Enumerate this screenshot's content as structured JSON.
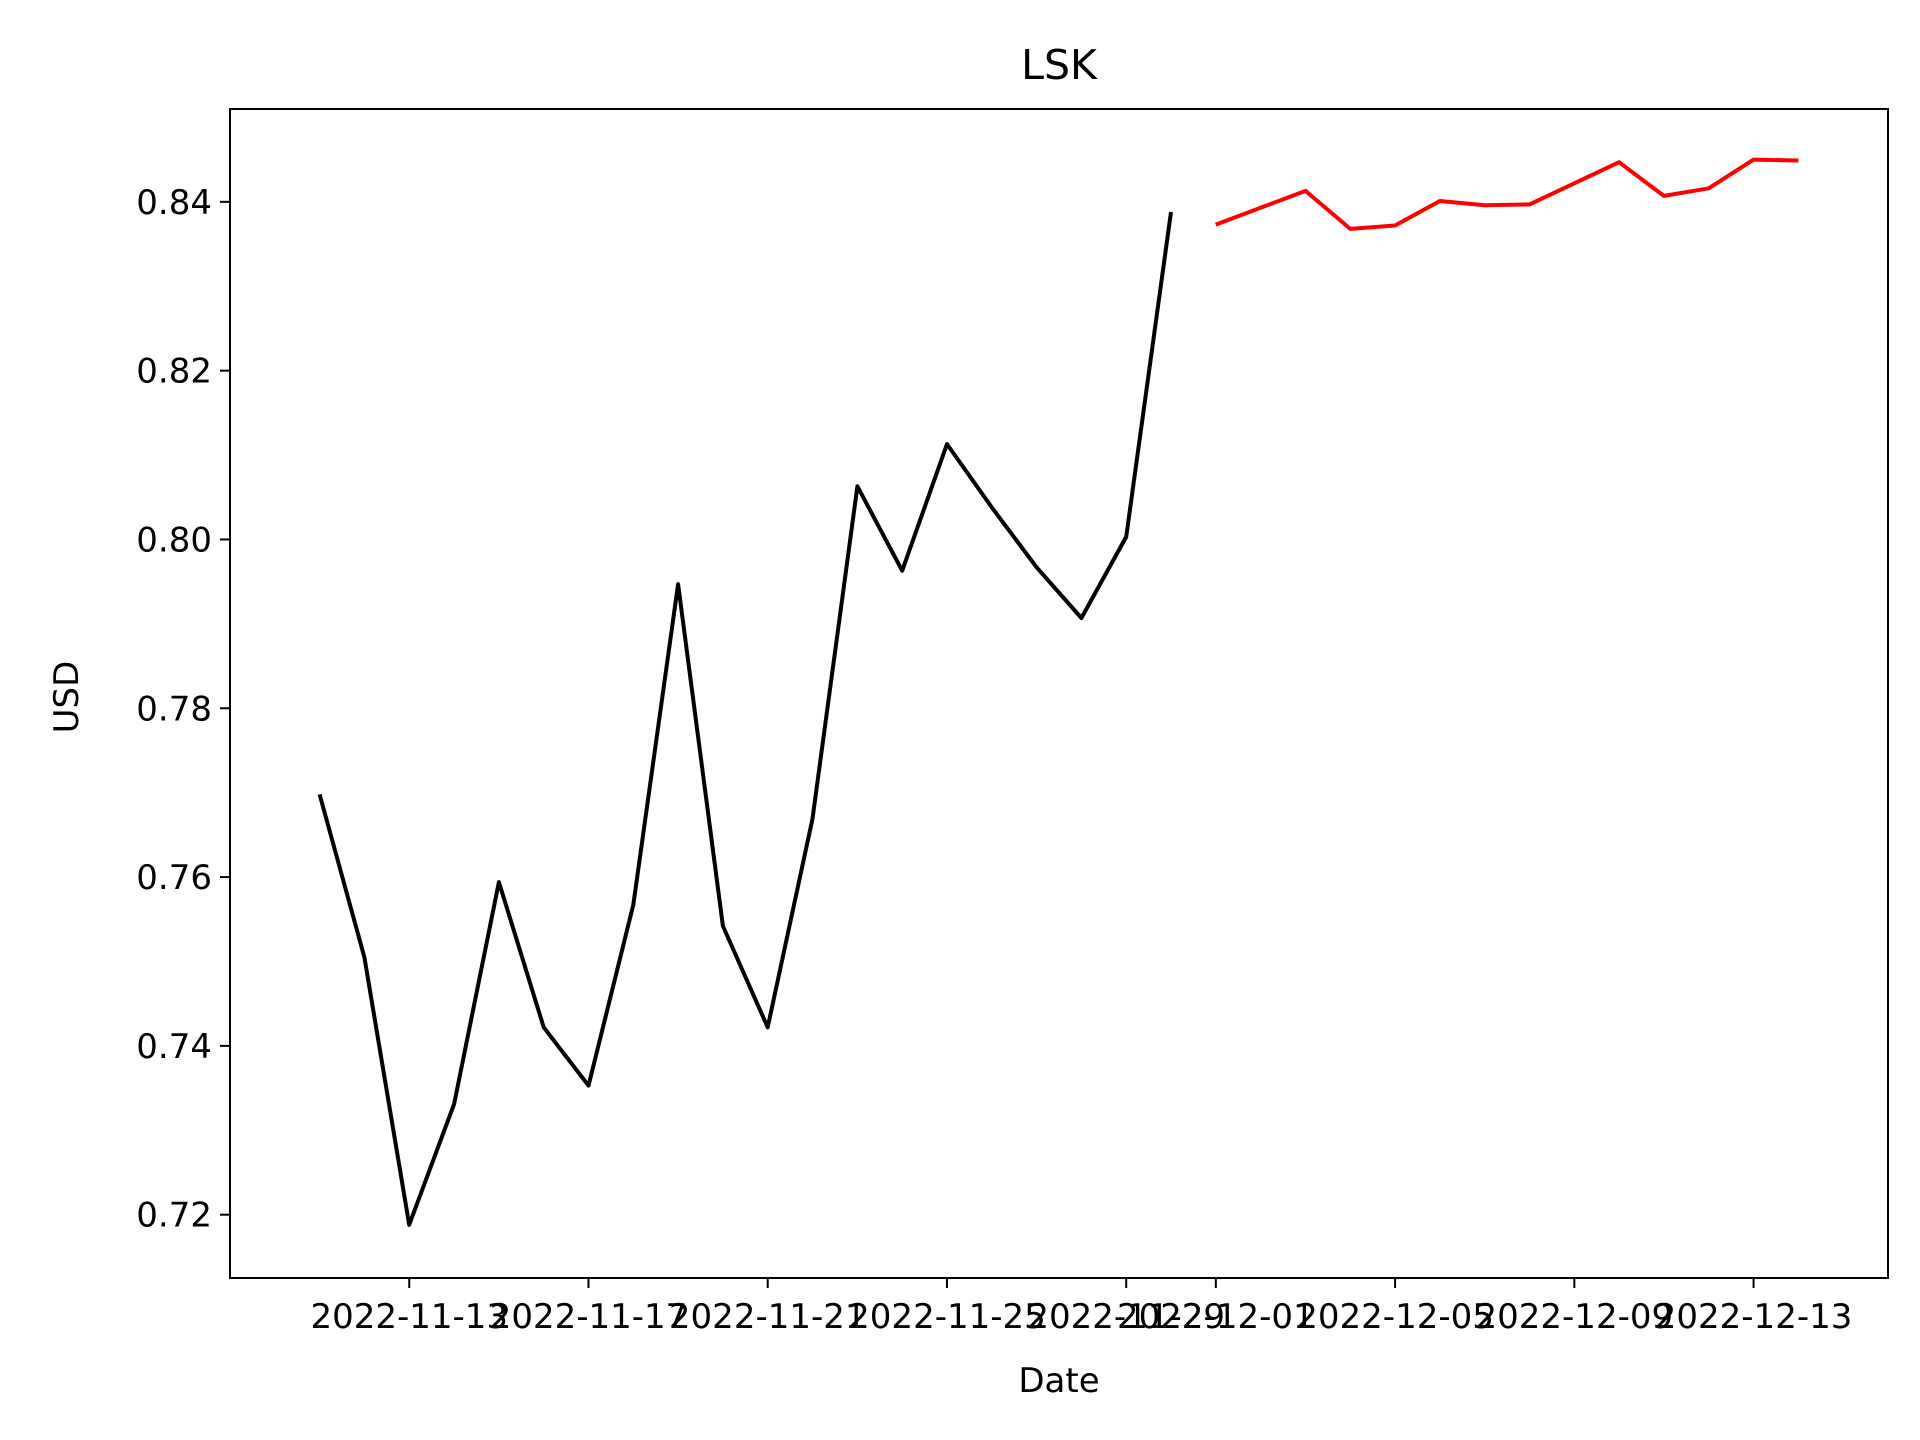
{
  "chart_data": {
    "type": "line",
    "title": "LSK",
    "xlabel": "Date",
    "ylabel": "USD",
    "xlim": [
      "2022-11-09",
      "2022-12-16"
    ],
    "ylim": [
      0.7125,
      0.851
    ],
    "grid": false,
    "x_ticks": [
      "2022-11-13",
      "2022-11-17",
      "2022-11-21",
      "2022-11-25",
      "2022-11-29",
      "2022-12-01",
      "2022-12-05",
      "2022-12-09",
      "2022-12-13"
    ],
    "y_ticks": [
      0.72,
      0.74,
      0.76,
      0.78,
      0.8,
      0.82,
      0.84
    ],
    "y_tick_labels": [
      "0.72",
      "0.74",
      "0.76",
      "0.78",
      "0.80",
      "0.82",
      "0.84"
    ],
    "series": [
      {
        "color": "#000000",
        "x": [
          "2022-11-11",
          "2022-11-12",
          "2022-11-13",
          "2022-11-14",
          "2022-11-15",
          "2022-11-16",
          "2022-11-17",
          "2022-11-18",
          "2022-11-19",
          "2022-11-20",
          "2022-11-21",
          "2022-11-22",
          "2022-11-23",
          "2022-11-24",
          "2022-11-25",
          "2022-11-26",
          "2022-11-27",
          "2022-11-28",
          "2022-11-29",
          "2022-11-30"
        ],
        "values": [
          0.7698,
          0.7505,
          0.7188,
          0.7331,
          0.7594,
          0.7422,
          0.7353,
          0.7567,
          0.7947,
          0.7542,
          0.7422,
          0.7669,
          0.8063,
          0.7963,
          0.8113,
          0.8038,
          0.7967,
          0.7907,
          0.8003,
          0.8388
        ]
      },
      {
        "color": "#ff0000",
        "x": [
          "2022-12-01",
          "2022-12-02",
          "2022-12-03",
          "2022-12-04",
          "2022-12-05",
          "2022-12-06",
          "2022-12-07",
          "2022-12-08",
          "2022-12-09",
          "2022-12-10",
          "2022-12-11",
          "2022-12-12",
          "2022-12-13",
          "2022-12-14"
        ],
        "values": [
          0.8373,
          0.8393,
          0.8413,
          0.8368,
          0.8372,
          0.8401,
          0.8396,
          0.8397,
          0.8422,
          0.8447,
          0.8407,
          0.8416,
          0.845,
          0.8449
        ]
      }
    ]
  }
}
